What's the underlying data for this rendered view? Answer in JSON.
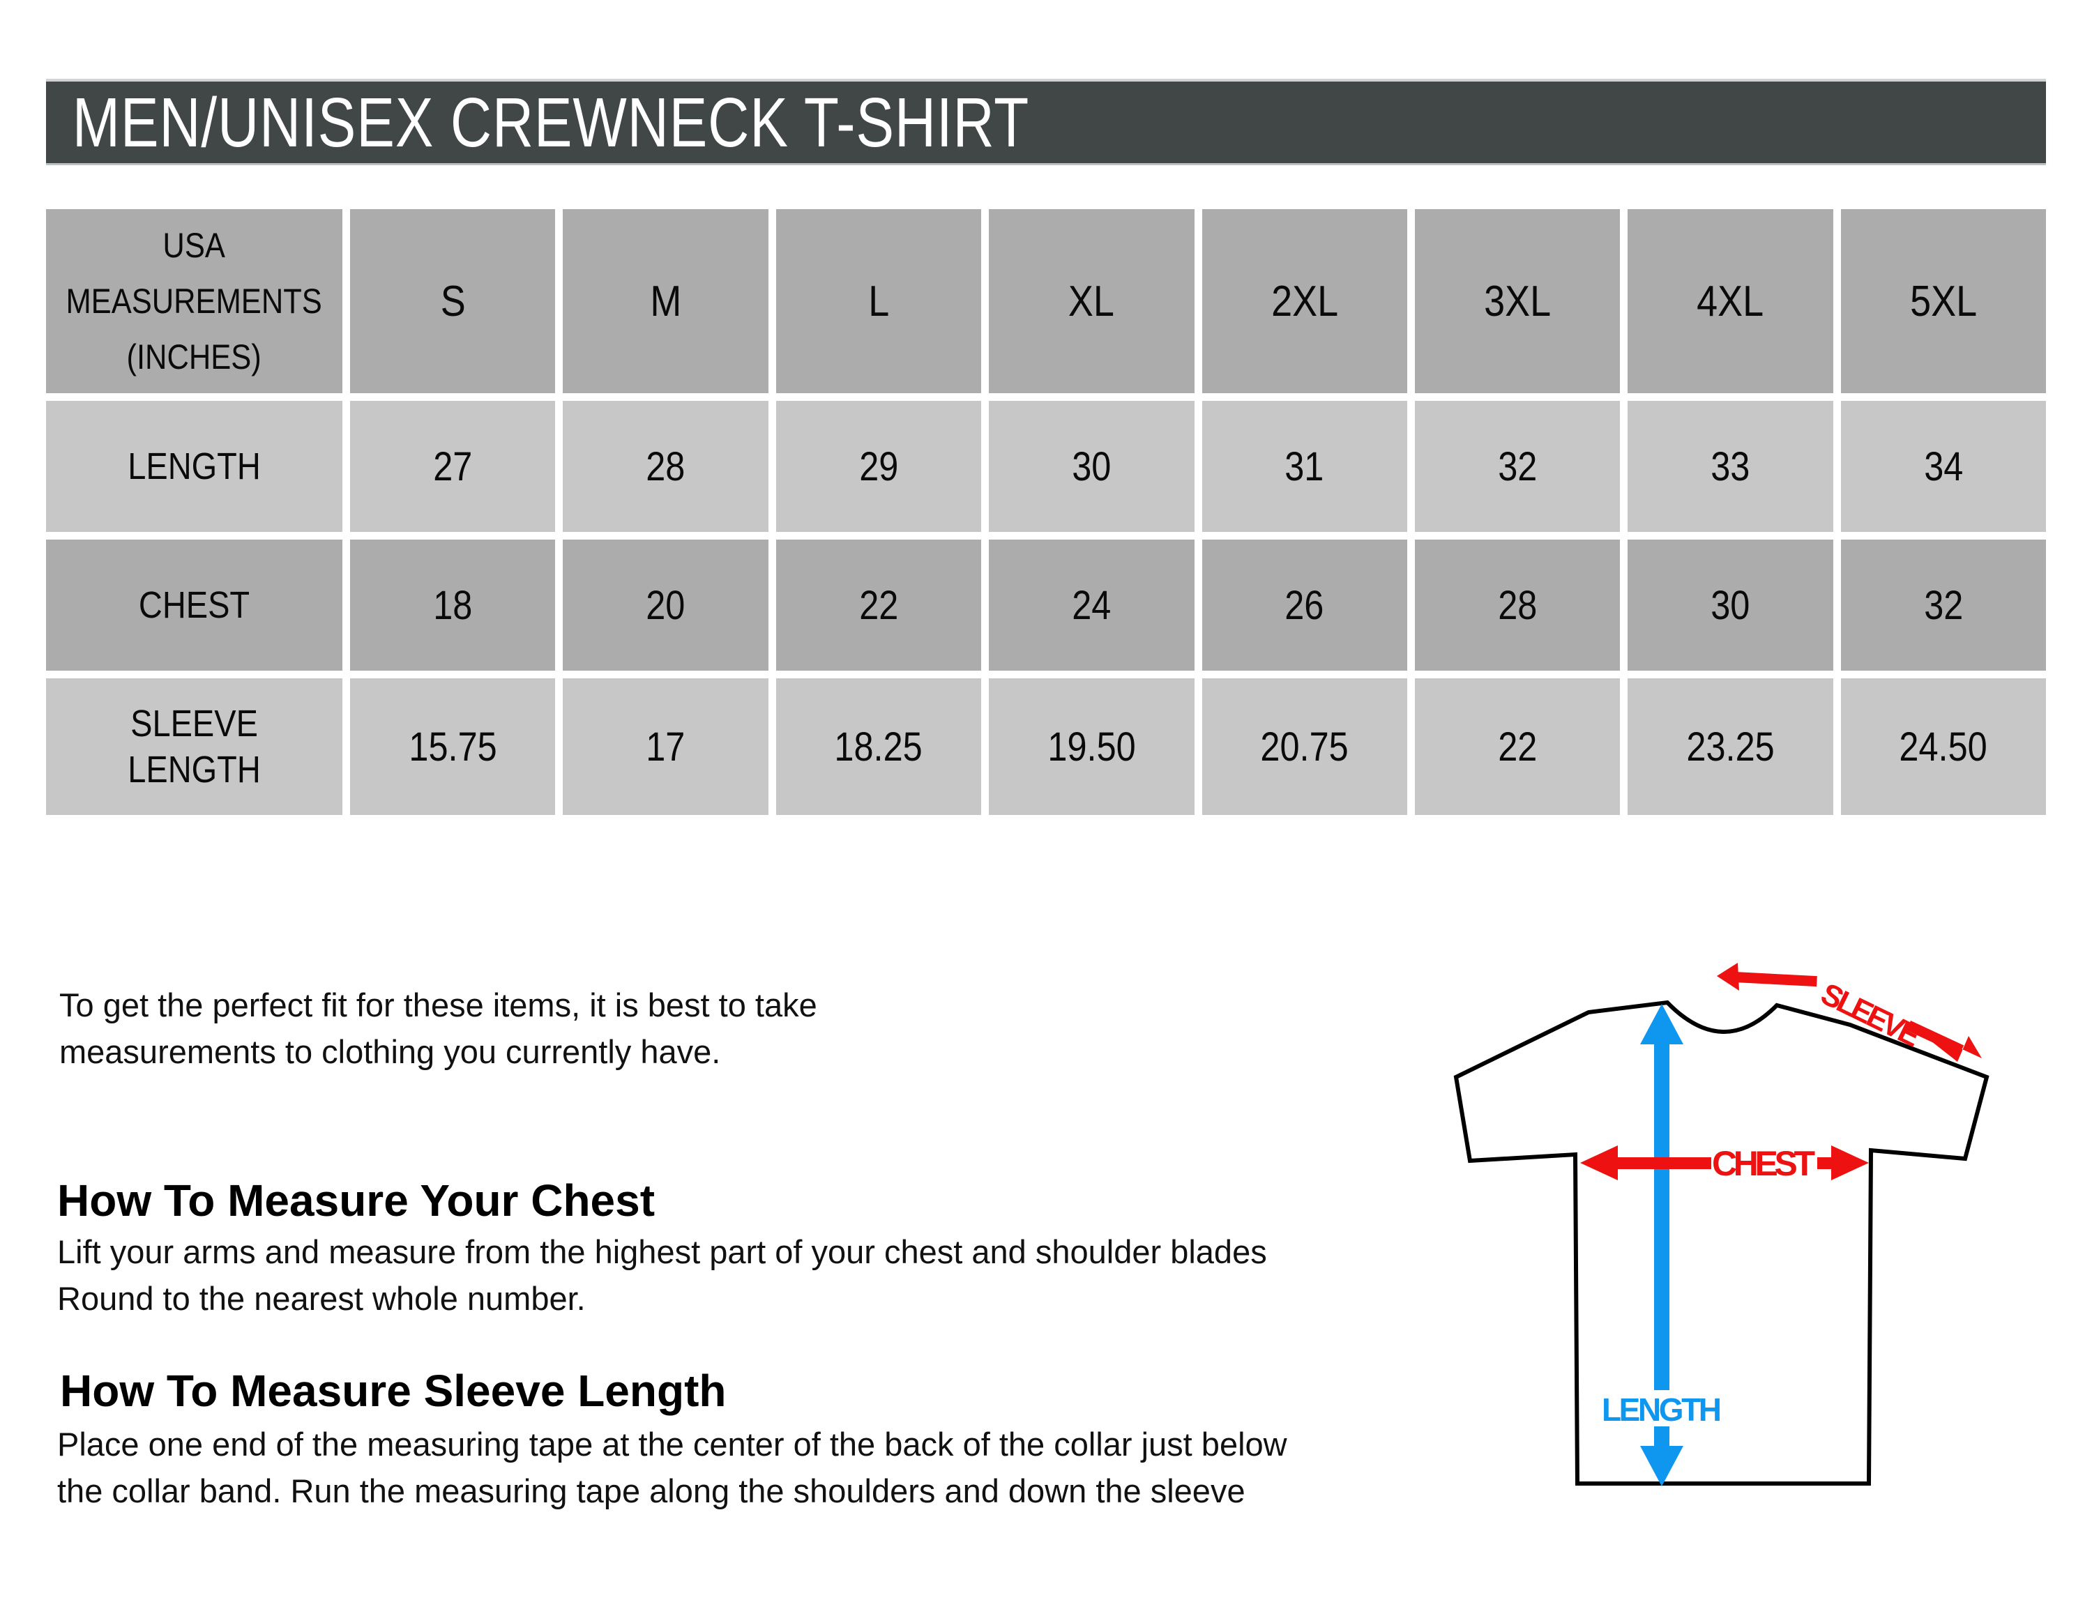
{
  "header": {
    "title": "MEN/UNISEX CREWNECK T-SHIRT",
    "bar_color": "#414747"
  },
  "size_chart": {
    "corner_label": "USA\nMEASUREMENTS\n(INCHES)",
    "sizes": [
      "S",
      "M",
      "L",
      "XL",
      "2XL",
      "3XL",
      "4XL",
      "5XL"
    ],
    "rows": [
      {
        "label": "LENGTH",
        "values": [
          "27",
          "28",
          "29",
          "30",
          "31",
          "32",
          "33",
          "34"
        ]
      },
      {
        "label": "CHEST",
        "values": [
          "18",
          "20",
          "22",
          "24",
          "26",
          "28",
          "30",
          "32"
        ]
      },
      {
        "label": "SLEEVE\nLENGTH",
        "values": [
          "15.75",
          "17",
          "18.25",
          "19.50",
          "20.75",
          "22",
          "23.25",
          "24.50"
        ]
      }
    ],
    "colors": {
      "dark_cell": "#acacac",
      "light_cell": "#c7c7c7"
    }
  },
  "instructions": {
    "intro": "To get the perfect fit for these items, it is best to take\nmeasurements to clothing you currently have.",
    "chest_heading": "How To Measure Your Chest",
    "chest_body": "Lift your arms and measure from the highest part of your chest and shoulder blades\nRound to the nearest whole number.",
    "sleeve_heading": "How To Measure Sleeve Length",
    "sleeve_body": "Place one end of the measuring tape at the center of the back of the collar just below\nthe collar band. Run the measuring tape along the shoulders and down the sleeve"
  },
  "diagram": {
    "sleeve_label": "SLEEVE",
    "chest_label": "CHEST",
    "length_label": "LENGTH",
    "colors": {
      "arrow_red": "#ee1111",
      "arrow_blue": "#0f96ef",
      "outline": "#000000"
    }
  }
}
